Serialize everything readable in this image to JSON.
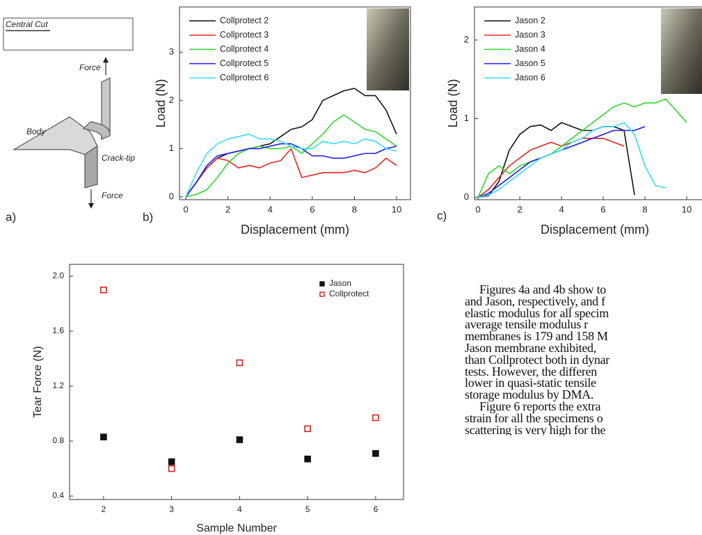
{
  "diagram": {
    "central_cut": "Central Cut",
    "force_top": "Force",
    "body": "Body",
    "crack_tip": "Crack-tip",
    "force_bottom": "Force",
    "panel_label": "a)"
  },
  "chart_data": [
    {
      "type": "line",
      "panel_label": "b)",
      "x_label": "Displacement (mm)",
      "y_label": "Load (N)",
      "x": [
        0,
        0.5,
        1,
        1.5,
        2,
        2.5,
        3,
        3.5,
        4,
        4.5,
        5,
        5.5,
        6,
        6.5,
        7,
        7.5,
        8,
        8.5,
        9,
        9.5,
        10
      ],
      "series": [
        {
          "name": "Collprotect 2",
          "color": "#111111",
          "values": [
            0,
            0.3,
            0.6,
            0.8,
            0.9,
            0.95,
            1.0,
            1.05,
            1.1,
            1.25,
            1.4,
            1.45,
            1.6,
            2.0,
            2.1,
            2.2,
            2.25,
            2.1,
            2.1,
            1.8,
            1.3
          ]
        },
        {
          "name": "Collprotect 3",
          "color": "#e8231f",
          "values": [
            0,
            0.3,
            0.6,
            0.8,
            0.75,
            0.6,
            0.65,
            0.6,
            0.7,
            0.75,
            1.0,
            0.4,
            0.45,
            0.5,
            0.5,
            0.5,
            0.55,
            0.5,
            0.6,
            0.8,
            0.65
          ]
        },
        {
          "name": "Collprotect 4",
          "color": "#2fd62a",
          "values": [
            0,
            0.05,
            0.15,
            0.4,
            0.7,
            0.9,
            1.0,
            1.05,
            1.0,
            1.0,
            1.05,
            0.9,
            1.1,
            1.3,
            1.55,
            1.7,
            1.55,
            1.4,
            1.35,
            1.2,
            1.05
          ]
        },
        {
          "name": "Collprotect 5",
          "color": "#1a1aee",
          "values": [
            0,
            0.3,
            0.65,
            0.85,
            0.9,
            0.95,
            1.0,
            1.0,
            1.05,
            1.1,
            1.1,
            1.0,
            0.85,
            0.85,
            0.8,
            0.8,
            0.85,
            0.9,
            0.9,
            1.0,
            1.05
          ]
        },
        {
          "name": "Collprotect 6",
          "color": "#35dcf5",
          "values": [
            0,
            0.5,
            0.9,
            1.1,
            1.2,
            1.25,
            1.3,
            1.2,
            1.2,
            1.15,
            1.05,
            1.0,
            1.0,
            1.15,
            1.1,
            1.15,
            1.1,
            1.2,
            1.15,
            1.0,
            0.95
          ]
        }
      ],
      "xlim": [
        -0.3,
        10.66
      ],
      "ylim": [
        -0.06,
        3.94
      ],
      "xticks": [
        0,
        2,
        4,
        6,
        8,
        10
      ],
      "yticks": [
        0,
        1,
        2,
        3
      ],
      "legend": "upper left",
      "grid": false
    },
    {
      "type": "line",
      "panel_label": "c)",
      "x_label": "Displacement (mm)",
      "y_label": "Load (N)",
      "x": [
        0,
        0.5,
        1,
        1.5,
        2,
        2.5,
        3,
        3.5,
        4,
        4.5,
        5,
        5.5,
        6,
        6.5,
        7,
        7.5,
        8,
        8.5,
        9,
        9.5,
        10
      ],
      "series": [
        {
          "name": "Jason 2",
          "color": "#111111",
          "values": [
            0,
            0.02,
            0.2,
            0.6,
            0.8,
            0.9,
            0.92,
            0.85,
            0.95,
            0.9,
            0.85,
            0.85,
            0.9,
            0.9,
            0.85,
            0.03,
            null,
            null,
            null,
            null,
            null
          ]
        },
        {
          "name": "Jason 3",
          "color": "#e8231f",
          "values": [
            0,
            0.1,
            0.25,
            0.4,
            0.5,
            0.6,
            0.65,
            0.7,
            0.65,
            0.7,
            0.75,
            0.75,
            0.75,
            0.7,
            0.65,
            null,
            null,
            null,
            null,
            null,
            null
          ]
        },
        {
          "name": "Jason 4",
          "color": "#2fd62a",
          "values": [
            0,
            0.3,
            0.4,
            0.3,
            0.4,
            0.45,
            0.5,
            0.55,
            0.65,
            0.75,
            0.85,
            0.95,
            1.05,
            1.15,
            1.2,
            1.15,
            1.2,
            1.2,
            1.25,
            1.1,
            0.95
          ]
        },
        {
          "name": "Jason 5",
          "color": "#1a1aee",
          "values": [
            0,
            0.05,
            0.15,
            0.25,
            0.35,
            0.45,
            0.5,
            0.55,
            0.6,
            0.65,
            0.7,
            0.75,
            0.8,
            0.85,
            0.85,
            0.85,
            0.9,
            null,
            null,
            null,
            null
          ]
        },
        {
          "name": "Jason 6",
          "color": "#35dcf5",
          "values": [
            0,
            0.03,
            0.1,
            0.2,
            0.3,
            0.4,
            0.5,
            0.55,
            0.6,
            0.7,
            0.75,
            0.85,
            0.9,
            0.9,
            0.95,
            0.8,
            0.4,
            0.15,
            0.12,
            null,
            null
          ]
        }
      ],
      "xlim": [
        -0.17,
        11.1
      ],
      "ylim": [
        -0.03,
        2.42
      ],
      "xticks": [
        0,
        2,
        4,
        6,
        8,
        10
      ],
      "yticks": [
        0,
        1,
        2
      ],
      "legend": "upper left",
      "grid": false
    },
    {
      "type": "scatter",
      "x_label": "Sample Number",
      "y_label": "Tear Force (N)",
      "x": [
        2,
        3,
        4,
        5,
        6
      ],
      "series": [
        {
          "name": "Jason",
          "color": "#111111",
          "filled": true,
          "values": [
            0.83,
            0.65,
            0.81,
            0.67,
            0.71
          ]
        },
        {
          "name": "Collprotect",
          "color": "#d0221c",
          "filled": false,
          "values": [
            1.9,
            0.6,
            1.37,
            0.89,
            0.97
          ]
        }
      ],
      "xlim": [
        1.5,
        6.41
      ],
      "ylim": [
        0.375,
        2.086
      ],
      "xticks": [
        2,
        3,
        4,
        5,
        6
      ],
      "yticks": [
        0.4,
        0.8,
        1.2,
        1.6,
        {
          "value": 2.0,
          "label": "2.0"
        }
      ],
      "legend": "upper right",
      "grid": false
    }
  ],
  "body_text": [
    "Figures 4a and 4b show to",
    "and Jason, respectively, and f",
    "elastic modulus for all specim",
    "average tensile modulus r",
    "membranes is 179 and 158 M",
    "Jason membrane exhibited,",
    "than Collprotect both in dynar",
    "tests. However, the differen",
    "lower in quasi-static tensile",
    "storage modulus by DMA.",
    "Figure 6 reports the extra",
    "strain for all the specimens o",
    "scattering is very high for the"
  ]
}
